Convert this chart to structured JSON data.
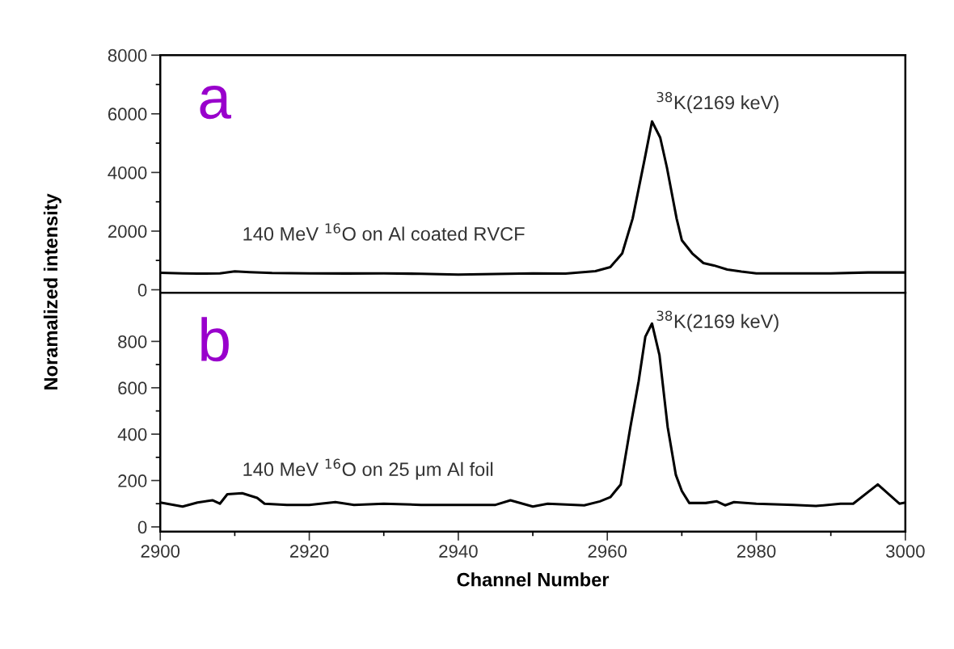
{
  "chart_data": [
    {
      "type": "line",
      "ylabel": "Noramalized intensity",
      "tick_labels": "y",
      "grid": false,
      "legend": false,
      "marker": "none",
      "line_style": "solid",
      "xlim": [
        2900,
        3000
      ],
      "xticks": [
        2900,
        2920,
        2940,
        2960,
        2980,
        3000
      ],
      "ylim": [
        -100,
        8000
      ],
      "yticks": [
        0,
        2000,
        4000,
        6000,
        8000
      ],
      "annotations": [
        "a",
        "$^{38}$K(2169 keV)",
        "140 MeV $^{16}$O on Al coated RVCF"
      ],
      "series": [
        {
          "color": "#000000",
          "x": [
            2900,
            2903,
            2905,
            2908,
            2910,
            2912,
            2915,
            2920,
            2925,
            2930,
            2935,
            2940,
            2945,
            2950,
            2954.4,
            2958.4,
            2960.4,
            2962,
            2963.4,
            2965,
            2966,
            2967.1,
            2968,
            2969.3,
            2970,
            2971.4,
            2972.9,
            2974.3,
            2976.1,
            2978,
            2980,
            2985,
            2990,
            2995,
            3000
          ],
          "values": [
            580,
            560,
            550,
            560,
            630,
            600,
            570,
            560,
            555,
            560,
            545,
            520,
            540,
            560,
            550,
            635,
            770,
            1240,
            2430,
            4440,
            5740,
            5190,
            4170,
            2430,
            1690,
            1240,
            910,
            830,
            690,
            620,
            560,
            560,
            560,
            590,
            590
          ]
        }
      ]
    },
    {
      "type": "line",
      "xlabel": "Channel Number",
      "grid": false,
      "legend": false,
      "marker": "none",
      "line_style": "solid",
      "xlim": [
        2900,
        3000
      ],
      "xticks": [
        2900,
        2920,
        2940,
        2960,
        2980,
        3000
      ],
      "ylim": [
        -20,
        1010
      ],
      "yticks": [
        0,
        200,
        400,
        600,
        800
      ],
      "annotations": [
        "b",
        "$^{38}$K(2169 keV)",
        "140 MeV $^{16}$O on 25 μm Al foil"
      ],
      "series": [
        {
          "color": "#000000",
          "x": [
            2900,
            2903,
            2905,
            2907,
            2908,
            2909,
            2911,
            2913,
            2914,
            2917,
            2920,
            2923.5,
            2926,
            2930,
            2935,
            2940,
            2945,
            2947,
            2950,
            2952,
            2956.9,
            2959,
            2960.4,
            2961.8,
            2963.1,
            2964.2,
            2965.1,
            2966,
            2967,
            2968.1,
            2969.2,
            2970,
            2971,
            2973.2,
            2974.7,
            2975.8,
            2977,
            2980,
            2985,
            2988,
            2991.3,
            2993,
            2996.3,
            2999.2,
            3000
          ],
          "values": [
            105,
            88,
            105,
            115,
            100,
            141,
            145,
            125,
            100,
            95,
            95,
            107,
            95,
            100,
            95,
            95,
            95,
            115,
            88,
            100,
            93,
            110,
            128,
            183,
            431,
            627,
            820,
            877,
            741,
            431,
            224,
            155,
            103,
            103,
            110,
            93,
            107,
            100,
            95,
            90,
            100,
            100,
            183,
            100,
            105
          ]
        }
      ]
    }
  ]
}
